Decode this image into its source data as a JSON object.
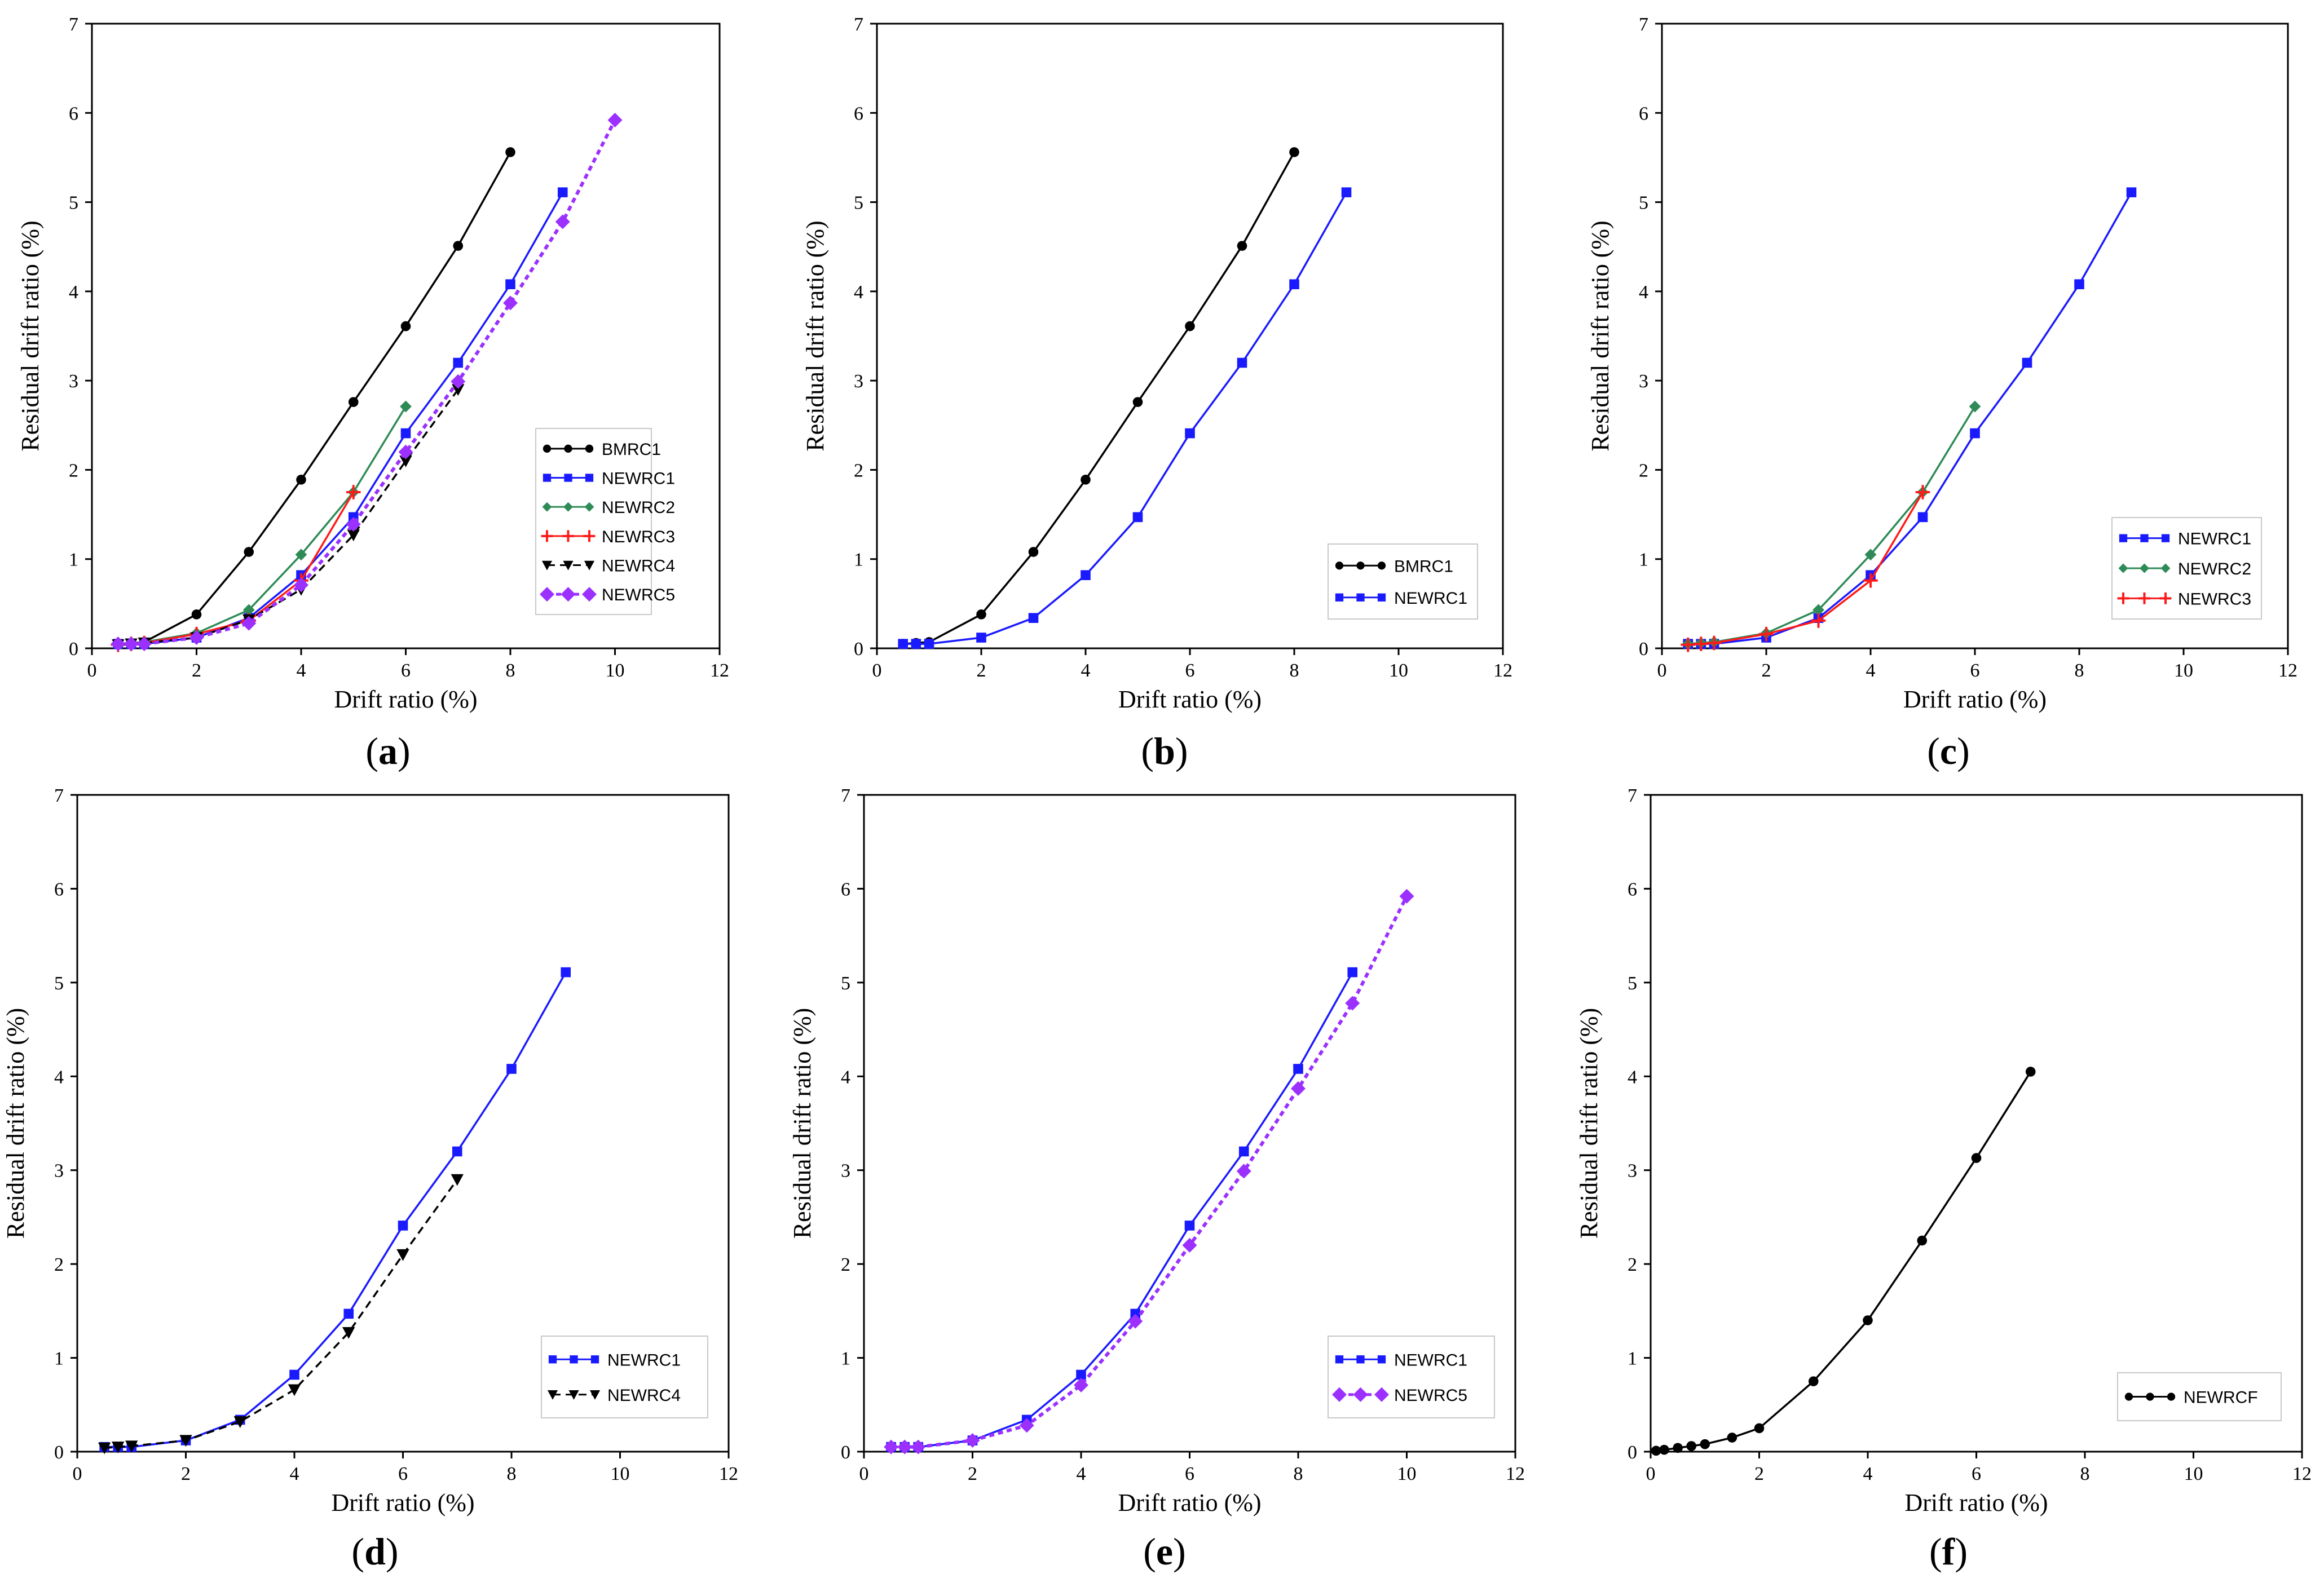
{
  "colors": {
    "BMRC1": "#000000",
    "NEWRC1": "#1a1aff",
    "NEWRC2": "#2e8b57",
    "NEWRC3": "#ff1a1a",
    "NEWRC4": "#000000",
    "NEWRC5": "#9b30ff",
    "NEWRCF": "#000000"
  },
  "chart_data": [
    {
      "type": "line",
      "panel": "(a)",
      "xlabel": "Drift ratio (%)",
      "ylabel": "Residual drift ratio (%)",
      "xlim": [
        0,
        12
      ],
      "ylim": [
        0,
        7
      ],
      "xticks": [
        0,
        2,
        4,
        6,
        8,
        10,
        12
      ],
      "yticks": [
        0,
        1,
        2,
        3,
        4,
        5,
        6,
        7
      ],
      "legend_position": "right-middle",
      "series": [
        {
          "name": "BMRC1",
          "marker": "circle",
          "dash": "solid",
          "x": [
            0.5,
            0.75,
            1,
            2,
            3,
            4,
            5,
            6,
            7,
            8
          ],
          "y": [
            0.05,
            0.06,
            0.07,
            0.38,
            1.08,
            1.89,
            2.76,
            3.61,
            4.51,
            5.56
          ]
        },
        {
          "name": "NEWRC1",
          "marker": "square",
          "dash": "solid",
          "x": [
            0.5,
            0.75,
            1,
            2,
            3,
            4,
            5,
            6,
            7,
            8,
            9
          ],
          "y": [
            0.05,
            0.05,
            0.05,
            0.12,
            0.34,
            0.82,
            1.47,
            2.41,
            3.2,
            4.08,
            5.11
          ]
        },
        {
          "name": "NEWRC2",
          "marker": "diamond-small",
          "dash": "solid",
          "x": [
            0.5,
            0.75,
            1,
            2,
            3,
            4,
            5,
            6
          ],
          "y": [
            0.05,
            0.06,
            0.07,
            0.17,
            0.43,
            1.05,
            1.75,
            2.71
          ]
        },
        {
          "name": "NEWRC3",
          "marker": "plus",
          "dash": "solid",
          "x": [
            0.5,
            0.75,
            1,
            2,
            3,
            4,
            5
          ],
          "y": [
            0.04,
            0.05,
            0.06,
            0.16,
            0.31,
            0.76,
            1.75
          ]
        },
        {
          "name": "NEWRC4",
          "marker": "triangle-down",
          "dash": "dash",
          "x": [
            0.5,
            0.75,
            1,
            2,
            3,
            4,
            5,
            6,
            7
          ],
          "y": [
            0.04,
            0.05,
            0.06,
            0.12,
            0.32,
            0.66,
            1.27,
            2.1,
            2.9
          ]
        },
        {
          "name": "NEWRC5",
          "marker": "diamond",
          "dash": "dot",
          "x": [
            0.5,
            0.75,
            1,
            2,
            3,
            4,
            5,
            6,
            7,
            8,
            9,
            10
          ],
          "y": [
            0.05,
            0.05,
            0.05,
            0.12,
            0.28,
            0.71,
            1.39,
            2.2,
            2.99,
            3.87,
            4.78,
            5.92
          ]
        }
      ]
    },
    {
      "type": "line",
      "panel": "(b)",
      "xlabel": "Drift ratio (%)",
      "ylabel": "Residual drift ratio (%)",
      "xlim": [
        0,
        12
      ],
      "ylim": [
        0,
        7
      ],
      "xticks": [
        0,
        2,
        4,
        6,
        8,
        10,
        12
      ],
      "yticks": [
        0,
        1,
        2,
        3,
        4,
        5,
        6,
        7
      ],
      "legend_position": "bottom-right",
      "series": [
        {
          "name": "BMRC1",
          "marker": "circle",
          "dash": "solid",
          "x": [
            0.5,
            0.75,
            1,
            2,
            3,
            4,
            5,
            6,
            7,
            8
          ],
          "y": [
            0.05,
            0.06,
            0.07,
            0.38,
            1.08,
            1.89,
            2.76,
            3.61,
            4.51,
            5.56
          ]
        },
        {
          "name": "NEWRC1",
          "marker": "square",
          "dash": "solid",
          "x": [
            0.5,
            0.75,
            1,
            2,
            3,
            4,
            5,
            6,
            7,
            8,
            9
          ],
          "y": [
            0.05,
            0.05,
            0.05,
            0.12,
            0.34,
            0.82,
            1.47,
            2.41,
            3.2,
            4.08,
            5.11
          ]
        }
      ]
    },
    {
      "type": "line",
      "panel": "(c)",
      "xlabel": "Drift ratio (%)",
      "ylabel": "Residual drift ratio (%)",
      "xlim": [
        0,
        12
      ],
      "ylim": [
        0,
        7
      ],
      "xticks": [
        0,
        2,
        4,
        6,
        8,
        10,
        12
      ],
      "yticks": [
        0,
        1,
        2,
        3,
        4,
        5,
        6,
        7
      ],
      "legend_position": "right-middle",
      "series": [
        {
          "name": "NEWRC1",
          "marker": "square",
          "dash": "solid",
          "x": [
            0.5,
            0.75,
            1,
            2,
            3,
            4,
            5,
            6,
            7,
            8,
            9
          ],
          "y": [
            0.05,
            0.05,
            0.05,
            0.12,
            0.34,
            0.82,
            1.47,
            2.41,
            3.2,
            4.08,
            5.11
          ]
        },
        {
          "name": "NEWRC2",
          "marker": "diamond-small",
          "dash": "solid",
          "x": [
            0.5,
            0.75,
            1,
            2,
            3,
            4,
            5,
            6
          ],
          "y": [
            0.05,
            0.06,
            0.07,
            0.17,
            0.43,
            1.05,
            1.75,
            2.71
          ]
        },
        {
          "name": "NEWRC3",
          "marker": "plus",
          "dash": "solid",
          "x": [
            0.5,
            0.75,
            1,
            2,
            3,
            4,
            5
          ],
          "y": [
            0.04,
            0.05,
            0.06,
            0.16,
            0.31,
            0.76,
            1.75
          ]
        }
      ]
    },
    {
      "type": "line",
      "panel": "(d)",
      "xlabel": "Drift ratio (%)",
      "ylabel": "Residual drift ratio (%)",
      "xlim": [
        0,
        12
      ],
      "ylim": [
        0,
        7
      ],
      "xticks": [
        0,
        2,
        4,
        6,
        8,
        10,
        12
      ],
      "yticks": [
        0,
        1,
        2,
        3,
        4,
        5,
        6,
        7
      ],
      "legend_position": "bottom-right",
      "series": [
        {
          "name": "NEWRC1",
          "marker": "square",
          "dash": "solid",
          "x": [
            0.5,
            0.75,
            1,
            2,
            3,
            4,
            5,
            6,
            7,
            8,
            9
          ],
          "y": [
            0.05,
            0.05,
            0.05,
            0.12,
            0.34,
            0.82,
            1.47,
            2.41,
            3.2,
            4.08,
            5.11
          ]
        },
        {
          "name": "NEWRC4",
          "marker": "triangle-down",
          "dash": "dash",
          "x": [
            0.5,
            0.75,
            1,
            2,
            3,
            4,
            5,
            6,
            7
          ],
          "y": [
            0.04,
            0.05,
            0.06,
            0.12,
            0.32,
            0.66,
            1.27,
            2.1,
            2.9
          ]
        }
      ]
    },
    {
      "type": "line",
      "panel": "(e)",
      "xlabel": "Drift ratio (%)",
      "ylabel": "Residual drift ratio (%)",
      "xlim": [
        0,
        12
      ],
      "ylim": [
        0,
        7
      ],
      "xticks": [
        0,
        2,
        4,
        6,
        8,
        10,
        12
      ],
      "yticks": [
        0,
        1,
        2,
        3,
        4,
        5,
        6,
        7
      ],
      "legend_position": "bottom-right",
      "series": [
        {
          "name": "NEWRC1",
          "marker": "square",
          "dash": "solid",
          "x": [
            0.5,
            0.75,
            1,
            2,
            3,
            4,
            5,
            6,
            7,
            8,
            9
          ],
          "y": [
            0.05,
            0.05,
            0.05,
            0.12,
            0.34,
            0.82,
            1.47,
            2.41,
            3.2,
            4.08,
            5.11
          ]
        },
        {
          "name": "NEWRC5",
          "marker": "diamond",
          "dash": "dot",
          "x": [
            0.5,
            0.75,
            1,
            2,
            3,
            4,
            5,
            6,
            7,
            8,
            9,
            10
          ],
          "y": [
            0.05,
            0.05,
            0.05,
            0.12,
            0.28,
            0.71,
            1.39,
            2.2,
            2.99,
            3.87,
            4.78,
            5.92
          ]
        }
      ]
    },
    {
      "type": "line",
      "panel": "(f)",
      "xlabel": "Drift ratio (%)",
      "ylabel": "Residual drift ratio (%)",
      "xlim": [
        0,
        12
      ],
      "ylim": [
        0,
        7
      ],
      "xticks": [
        0,
        2,
        4,
        6,
        8,
        10,
        12
      ],
      "yticks": [
        0,
        1,
        2,
        3,
        4,
        5,
        6,
        7
      ],
      "legend_position": "bottom-right",
      "series": [
        {
          "name": "NEWRCF",
          "marker": "circle",
          "dash": "solid",
          "x": [
            0.1,
            0.25,
            0.5,
            0.75,
            1,
            1.5,
            2,
            3,
            4,
            5,
            6,
            7
          ],
          "y": [
            0.01,
            0.02,
            0.04,
            0.06,
            0.08,
            0.15,
            0.25,
            0.75,
            1.4,
            2.25,
            3.13,
            4.05
          ]
        }
      ]
    }
  ]
}
